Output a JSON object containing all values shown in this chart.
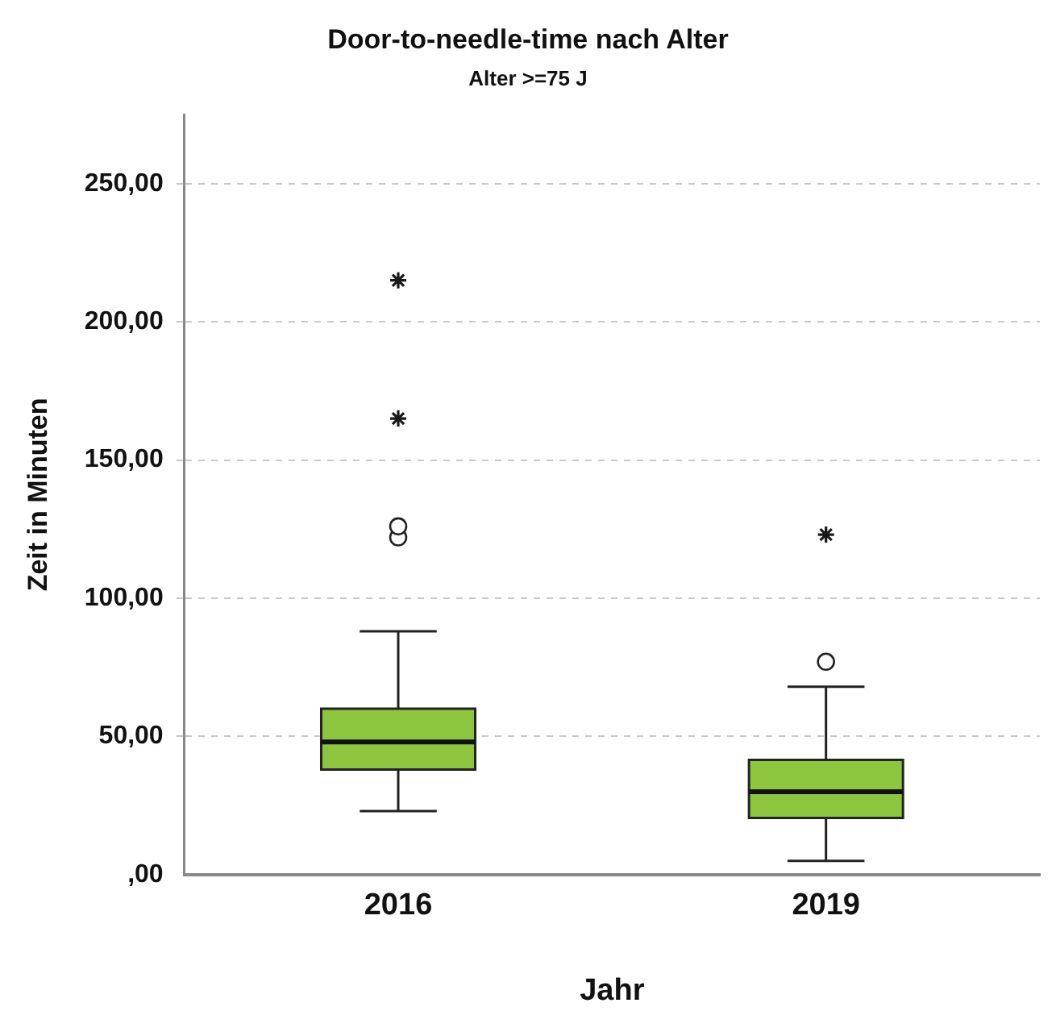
{
  "chart_data": {
    "type": "box",
    "title": "Door-to-needle-time nach Alter",
    "subtitle": "Alter >=75 J",
    "xlabel": "Jahr",
    "ylabel": "Zeit in Minuten",
    "categories": [
      "2016",
      "2019"
    ],
    "boxes": [
      {
        "low": 23,
        "q1": 38,
        "median": 48,
        "q3": 60,
        "high": 88,
        "outliers": [
          122,
          126
        ]
      },
      {
        "low": 5,
        "q1": 20.5,
        "median": 30,
        "q3": 41.5,
        "high": 68,
        "outliers": [
          77
        ]
      }
    ],
    "color": "#8cc63f",
    "series": [
      {
        "type": "scatter",
        "values": [
          215,
          123
        ],
        "marker": "cross",
        "color": "#1a1a1a"
      },
      {
        "type": "scatter",
        "values": [
          165,
          null
        ],
        "marker": "cross",
        "color": "#1a1a1a"
      }
    ],
    "ylim": [
      0,
      275
    ],
    "yticks": [
      {
        "value": 0,
        "label": ",00"
      },
      {
        "value": 50,
        "label": "50,00"
      },
      {
        "value": 100,
        "label": "100,00"
      },
      {
        "value": 150,
        "label": "150,00"
      },
      {
        "value": 200,
        "label": "200,00"
      },
      {
        "value": 250,
        "label": "250,00"
      }
    ],
    "grid": "y",
    "legend": false
  }
}
